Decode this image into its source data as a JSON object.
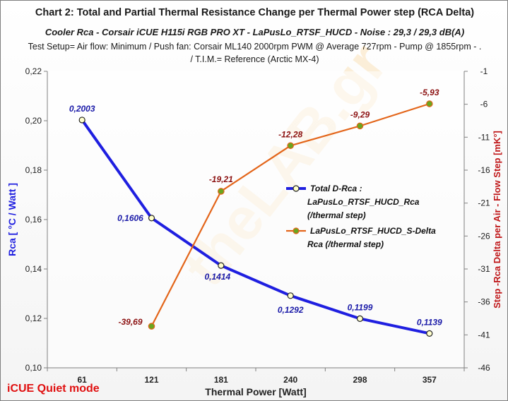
{
  "chart_data": {
    "type": "line",
    "title": "Chart 2: Total and Partial Thermal Resistance Change per Thermal Power step   (RCA Delta)",
    "subtitle": "Cooler Rca  -  Corsair iCUE H115i RGB PRO XT  -  LaPusLo_RTSF_HUCD  - Noise : 29,3 / 29,3  dB(A)",
    "setup_line1": "Test Setup= Air flow: Minimum / Push fan: Corsair ML140  2000rpm  PWM @ Average 727rpm - Pump @ 1855rpm - .",
    "setup_line2": "/ T.I.M.= Reference (Arctic MX-4)",
    "footer_note": "iCUE Quiet mode",
    "watermark": "theLAB.gr",
    "xlabel": "Thermal Power [Watt]",
    "ylabel_left": "Rca  [ °C / Watt ]",
    "ylabel_right": "Step -Rca Delta per Air - Flow Step  [mK°]",
    "categories": [
      "61",
      "121",
      "181",
      "240",
      "298",
      "357"
    ],
    "y_left": {
      "min": 0.1,
      "max": 0.22,
      "ticks": [
        "0,10",
        "0,12",
        "0,14",
        "0,16",
        "0,18",
        "0,20",
        "0,22"
      ]
    },
    "y_right": {
      "min": -46,
      "max": -1,
      "ticks": [
        "-46",
        "-41",
        "-36",
        "-31",
        "-26",
        "-21",
        "-16",
        "-11",
        "-6",
        "-1"
      ]
    },
    "legend_position": "center-right",
    "grid": false,
    "series": [
      {
        "name": "Total D-Rca : LaPusLo_RTSF_HUCD_Rca (/thermal step)",
        "legend_lines": [
          "Total D-Rca :",
          "LaPusLo_RTSF_HUCD_Rca",
          "(/thermal step)"
        ],
        "axis": "left",
        "color": "#1f1fe0",
        "marker_fill": "#ffffcc",
        "values": [
          0.2003,
          0.1606,
          0.1414,
          0.1292,
          0.1199,
          0.1139
        ],
        "labels": [
          "0,2003",
          "0,1606",
          "0,1414",
          "0,1292",
          "0,1199",
          "0,1139"
        ]
      },
      {
        "name": "LaPusLo_RTSF_HUCD_S-Delta Rca (/thermal step)",
        "legend_lines": [
          "LaPusLo_RTSF_HUCD_S-Delta",
          "Rca (/thermal step)"
        ],
        "axis": "right",
        "color": "#e3651a",
        "marker_fill": "#6aa61f",
        "values": [
          null,
          -39.69,
          -19.21,
          -12.28,
          -9.29,
          -5.93
        ],
        "labels": [
          "",
          "-39,69",
          "-19,21",
          "-12,28",
          "-9,29",
          "-5,93"
        ]
      }
    ]
  }
}
